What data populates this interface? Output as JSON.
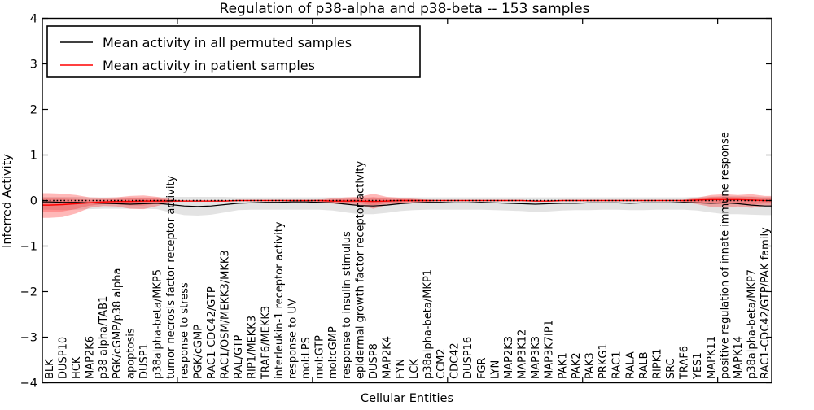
{
  "colors": {
    "frame": "#000000",
    "permuted_line": "#000000",
    "patient_line": "#ff0000",
    "permuted_band": "rgba(0,0,0,0.11)",
    "patient_band_outer": "rgba(255,0,0,0.28)",
    "patient_band_inner": "rgba(255,0,0,0.22)",
    "zero_line": "#000000"
  },
  "chart_data": {
    "type": "line",
    "title": "Regulation of p38-alpha and p38-beta -- 153 samples",
    "xlabel": "Cellular Entities",
    "ylabel": "Inferred Activity",
    "ylim": [
      -4,
      4
    ],
    "yticks": [
      "4",
      "3",
      "2",
      "1",
      "0",
      "−1",
      "−2",
      "−3",
      "−4"
    ],
    "ytick_values": [
      4,
      3,
      2,
      1,
      0,
      -1,
      -2,
      -3,
      -4
    ],
    "xtick_mark_values": [
      10,
      20,
      30,
      40,
      50
    ],
    "grid": false,
    "legend_position": "upper left",
    "categories": [
      "BLK",
      "DUSP10",
      "HCK",
      "MAP2K6",
      "p38 alpha/TAB1",
      "PGK/cGMP/p38 alpha",
      "apoptosis",
      "DUSP1",
      "p38alpha-beta/MKP5",
      "tumor necrosis factor receptor activity",
      "response to stress",
      "PGK/cGMP",
      "RAC1-CDC42/GTP",
      "RAC1/OSM/MEKK3/MKK3",
      "RAL/GTP",
      "RIP1/MEKK3",
      "TRAF6/MEKK3",
      "interleukin-1 receptor activity",
      "response to UV",
      "mol:LPS",
      "mol:GTP",
      "mol:cGMP",
      "response to insulin stimulus",
      "epidermal growth factor receptor activity",
      "DUSP8",
      "MAP2K4",
      "FYN",
      "LCK",
      "p38alpha-beta/MKP1",
      "CCM2",
      "CDC42",
      "DUSP16",
      "FGR",
      "LYN",
      "MAP2K3",
      "MAP3K12",
      "MAP3K3",
      "MAP3K7IP1",
      "PAK1",
      "PAK2",
      "PAK3",
      "PRKG1",
      "RAC1",
      "RALA",
      "RALB",
      "RIPK1",
      "SRC",
      "TRAF6",
      "YES1",
      "MAPK11",
      "positive regulation of innate immune response",
      "MAPK14",
      "p38alpha-beta/MKP7",
      "RAC1-CDC42/GTP/PAK family"
    ],
    "series": [
      {
        "name": "Mean activity in all permuted samples",
        "color": "#000000",
        "values": [
          -0.03,
          -0.04,
          -0.04,
          -0.05,
          -0.06,
          -0.07,
          -0.08,
          -0.07,
          -0.06,
          -0.09,
          -0.12,
          -0.13,
          -0.12,
          -0.09,
          -0.06,
          -0.05,
          -0.04,
          -0.04,
          -0.03,
          -0.03,
          -0.04,
          -0.05,
          -0.08,
          -0.11,
          -0.12,
          -0.1,
          -0.07,
          -0.05,
          -0.04,
          -0.04,
          -0.05,
          -0.05,
          -0.04,
          -0.05,
          -0.06,
          -0.07,
          -0.08,
          -0.07,
          -0.06,
          -0.06,
          -0.05,
          -0.05,
          -0.05,
          -0.06,
          -0.05,
          -0.05,
          -0.05,
          -0.04,
          -0.05,
          -0.06,
          -0.05,
          -0.07,
          -0.1,
          -0.12
        ]
      },
      {
        "name": "Mean activity in patient samples",
        "color": "#ff0000",
        "values": [
          -0.1,
          -0.09,
          -0.07,
          -0.05,
          -0.03,
          -0.02,
          -0.02,
          -0.01,
          -0.01,
          -0.01,
          -0.01,
          -0.01,
          -0.01,
          -0.01,
          0.0,
          0.0,
          0.0,
          0.0,
          0.0,
          0.0,
          0.0,
          -0.01,
          -0.01,
          -0.01,
          -0.02,
          -0.01,
          0.0,
          0.0,
          0.0,
          0.0,
          0.0,
          0.0,
          0.0,
          0.0,
          0.0,
          0.0,
          -0.01,
          -0.01,
          0.0,
          0.0,
          0.0,
          0.0,
          0.0,
          0.0,
          0.0,
          0.0,
          0.0,
          0.0,
          0.01,
          0.02,
          0.02,
          0.02,
          0.01,
          0.0
        ]
      }
    ],
    "bands": [
      {
        "name": "permuted-std-band",
        "top": [
          0.08,
          0.08,
          0.08,
          0.07,
          0.07,
          0.07,
          0.07,
          0.07,
          0.07,
          0.08,
          0.08,
          0.08,
          0.08,
          0.08,
          0.07,
          0.07,
          0.07,
          0.07,
          0.07,
          0.07,
          0.07,
          0.07,
          0.07,
          0.07,
          0.07,
          0.07,
          0.07,
          0.07,
          0.07,
          0.07,
          0.07,
          0.07,
          0.07,
          0.07,
          0.07,
          0.07,
          0.07,
          0.07,
          0.07,
          0.07,
          0.07,
          0.07,
          0.07,
          0.07,
          0.07,
          0.07,
          0.07,
          0.07,
          0.08,
          0.09,
          0.1,
          0.1,
          0.09,
          0.08
        ],
        "bottom": [
          -0.2,
          -0.21,
          -0.2,
          -0.19,
          -0.18,
          -0.18,
          -0.18,
          -0.18,
          -0.19,
          -0.26,
          -0.32,
          -0.33,
          -0.31,
          -0.26,
          -0.21,
          -0.2,
          -0.2,
          -0.2,
          -0.2,
          -0.2,
          -0.2,
          -0.22,
          -0.26,
          -0.3,
          -0.3,
          -0.27,
          -0.23,
          -0.21,
          -0.2,
          -0.2,
          -0.2,
          -0.2,
          -0.2,
          -0.21,
          -0.22,
          -0.23,
          -0.25,
          -0.24,
          -0.22,
          -0.21,
          -0.21,
          -0.2,
          -0.2,
          -0.21,
          -0.21,
          -0.2,
          -0.2,
          -0.2,
          -0.22,
          -0.26,
          -0.3,
          -0.3,
          -0.31,
          -0.32
        ]
      },
      {
        "name": "patient-std-band",
        "top": [
          0.16,
          0.15,
          0.12,
          0.07,
          0.06,
          0.07,
          0.1,
          0.11,
          0.08,
          0.03,
          -0.01,
          -0.01,
          -0.01,
          -0.01,
          0.0,
          0.0,
          0.0,
          0.0,
          0.0,
          0.0,
          0.02,
          0.05,
          0.07,
          0.08,
          0.15,
          0.08,
          0.06,
          0.04,
          0.02,
          0.0,
          0.0,
          0.0,
          0.0,
          0.0,
          0.0,
          0.0,
          -0.01,
          -0.01,
          0.0,
          0.0,
          0.0,
          0.0,
          0.0,
          0.0,
          0.0,
          0.0,
          0.0,
          0.02,
          0.06,
          0.12,
          0.14,
          0.12,
          0.14,
          0.1
        ],
        "bottom": [
          -0.38,
          -0.36,
          -0.28,
          -0.16,
          -0.12,
          -0.13,
          -0.18,
          -0.19,
          -0.12,
          -0.04,
          -0.01,
          -0.01,
          -0.01,
          -0.01,
          0.0,
          0.0,
          0.0,
          0.0,
          0.0,
          0.0,
          -0.03,
          -0.07,
          -0.09,
          -0.1,
          -0.18,
          -0.1,
          -0.08,
          -0.05,
          -0.03,
          0.0,
          0.0,
          0.0,
          0.0,
          0.0,
          0.0,
          0.0,
          -0.01,
          -0.01,
          0.0,
          0.0,
          0.0,
          0.0,
          0.0,
          0.0,
          0.0,
          0.0,
          0.0,
          -0.03,
          -0.08,
          -0.14,
          -0.16,
          -0.13,
          -0.16,
          -0.12
        ]
      }
    ],
    "zero_line": {
      "value": 0,
      "style": "dotted"
    }
  }
}
